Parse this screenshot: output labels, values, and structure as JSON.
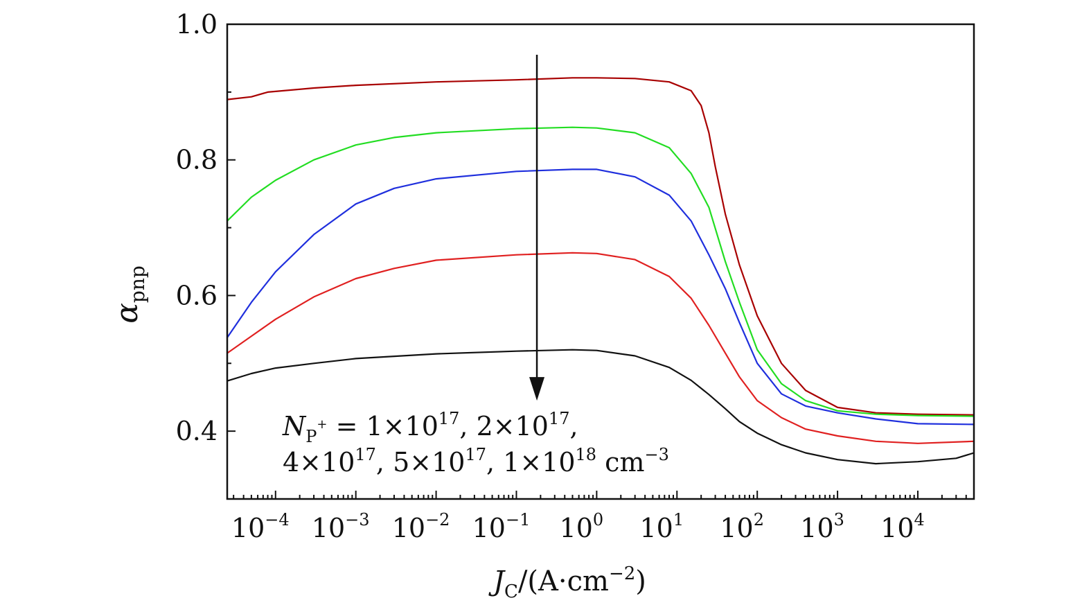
{
  "chart_data": {
    "type": "line",
    "xscale": "log",
    "x_ticks": [
      0.0001,
      0.001,
      0.01,
      0.1,
      1,
      10,
      100,
      1000,
      10000
    ],
    "x_tick_labels": [
      {
        "base": "10",
        "exp": "−4"
      },
      {
        "base": "10",
        "exp": "−3"
      },
      {
        "base": "10",
        "exp": "−2"
      },
      {
        "base": "10",
        "exp": "−1"
      },
      {
        "base": "10",
        "exp": "0"
      },
      {
        "base": "10",
        "exp": "1"
      },
      {
        "base": "10",
        "exp": "2"
      },
      {
        "base": "10",
        "exp": "3"
      },
      {
        "base": "10",
        "exp": "4"
      }
    ],
    "xlim": [
      2.5e-05,
      50000
    ],
    "ylim": [
      0.3,
      1.0
    ],
    "y_ticks": [
      0.4,
      0.6,
      0.8,
      1.0
    ],
    "y_tick_labels": [
      "0.4",
      "0.6",
      "0.8",
      "1.0"
    ],
    "xlabel": {
      "main": "J",
      "sub": "C",
      "unit": "/(A·cm",
      "exp": "−2",
      "close": ")"
    },
    "ylabel": {
      "main": "α",
      "sub": "pnp"
    },
    "grid": false,
    "annotation": {
      "line1": {
        "main": "N",
        "sub": "P",
        "subsup": "+",
        "rest": " = 1×10",
        "e1": "17",
        "t2": ", 2×10",
        "e2": "17",
        "t3": ","
      },
      "line2": {
        "t1": "4×10",
        "e1": "17",
        "t2": ", 5×10",
        "e2": "17",
        "t3": ", 1×10",
        "e3": "18",
        "t4": " cm",
        "e4": "−3"
      }
    },
    "arrow": {
      "x": 0.18,
      "y_start": 0.955,
      "y_end": 0.445
    },
    "series": [
      {
        "color": "#a80000",
        "points": [
          [
            2.5e-05,
            0.889
          ],
          [
            5e-05,
            0.893
          ],
          [
            8e-05,
            0.9
          ],
          [
            0.0003,
            0.906
          ],
          [
            0.001,
            0.91
          ],
          [
            0.01,
            0.915
          ],
          [
            0.1,
            0.918
          ],
          [
            0.5,
            0.921
          ],
          [
            1,
            0.921
          ],
          [
            3,
            0.92
          ],
          [
            8,
            0.915
          ],
          [
            15,
            0.902
          ],
          [
            20,
            0.88
          ],
          [
            25,
            0.84
          ],
          [
            30,
            0.79
          ],
          [
            40,
            0.72
          ],
          [
            60,
            0.645
          ],
          [
            100,
            0.57
          ],
          [
            200,
            0.5
          ],
          [
            400,
            0.46
          ],
          [
            1000,
            0.435
          ],
          [
            3000,
            0.427
          ],
          [
            10000,
            0.425
          ],
          [
            50000,
            0.424
          ]
        ]
      },
      {
        "color": "#22dd22",
        "points": [
          [
            2.5e-05,
            0.71
          ],
          [
            5e-05,
            0.745
          ],
          [
            0.0001,
            0.77
          ],
          [
            0.0003,
            0.8
          ],
          [
            0.001,
            0.822
          ],
          [
            0.003,
            0.833
          ],
          [
            0.01,
            0.84
          ],
          [
            0.1,
            0.846
          ],
          [
            0.5,
            0.848
          ],
          [
            1,
            0.847
          ],
          [
            3,
            0.84
          ],
          [
            8,
            0.818
          ],
          [
            15,
            0.78
          ],
          [
            25,
            0.73
          ],
          [
            40,
            0.65
          ],
          [
            60,
            0.59
          ],
          [
            100,
            0.52
          ],
          [
            200,
            0.47
          ],
          [
            400,
            0.445
          ],
          [
            1000,
            0.43
          ],
          [
            3000,
            0.425
          ],
          [
            10000,
            0.423
          ],
          [
            50000,
            0.422
          ]
        ]
      },
      {
        "color": "#1f2fdd",
        "points": [
          [
            2.5e-05,
            0.538
          ],
          [
            5e-05,
            0.59
          ],
          [
            0.0001,
            0.635
          ],
          [
            0.0003,
            0.69
          ],
          [
            0.001,
            0.735
          ],
          [
            0.003,
            0.758
          ],
          [
            0.01,
            0.772
          ],
          [
            0.1,
            0.783
          ],
          [
            0.5,
            0.786
          ],
          [
            1,
            0.786
          ],
          [
            3,
            0.775
          ],
          [
            8,
            0.748
          ],
          [
            15,
            0.71
          ],
          [
            25,
            0.66
          ],
          [
            40,
            0.61
          ],
          [
            60,
            0.56
          ],
          [
            100,
            0.5
          ],
          [
            200,
            0.455
          ],
          [
            400,
            0.437
          ],
          [
            1000,
            0.427
          ],
          [
            3000,
            0.418
          ],
          [
            10000,
            0.411
          ],
          [
            50000,
            0.41
          ]
        ]
      },
      {
        "color": "#e02020",
        "points": [
          [
            2.5e-05,
            0.515
          ],
          [
            5e-05,
            0.54
          ],
          [
            0.0001,
            0.565
          ],
          [
            0.0003,
            0.598
          ],
          [
            0.001,
            0.625
          ],
          [
            0.003,
            0.64
          ],
          [
            0.01,
            0.652
          ],
          [
            0.1,
            0.66
          ],
          [
            0.5,
            0.663
          ],
          [
            1,
            0.662
          ],
          [
            3,
            0.653
          ],
          [
            8,
            0.628
          ],
          [
            15,
            0.596
          ],
          [
            25,
            0.556
          ],
          [
            40,
            0.515
          ],
          [
            60,
            0.48
          ],
          [
            100,
            0.445
          ],
          [
            200,
            0.42
          ],
          [
            400,
            0.403
          ],
          [
            1000,
            0.393
          ],
          [
            3000,
            0.385
          ],
          [
            10000,
            0.382
          ],
          [
            50000,
            0.385
          ]
        ]
      },
      {
        "color": "#111111",
        "points": [
          [
            2.5e-05,
            0.474
          ],
          [
            5e-05,
            0.485
          ],
          [
            0.0001,
            0.493
          ],
          [
            0.0003,
            0.5
          ],
          [
            0.001,
            0.507
          ],
          [
            0.01,
            0.514
          ],
          [
            0.1,
            0.518
          ],
          [
            0.5,
            0.52
          ],
          [
            1,
            0.519
          ],
          [
            3,
            0.511
          ],
          [
            8,
            0.494
          ],
          [
            15,
            0.475
          ],
          [
            25,
            0.454
          ],
          [
            40,
            0.433
          ],
          [
            60,
            0.414
          ],
          [
            100,
            0.397
          ],
          [
            200,
            0.38
          ],
          [
            400,
            0.368
          ],
          [
            1000,
            0.358
          ],
          [
            3000,
            0.352
          ],
          [
            10000,
            0.355
          ],
          [
            30000,
            0.36
          ],
          [
            50000,
            0.368
          ]
        ]
      }
    ]
  }
}
